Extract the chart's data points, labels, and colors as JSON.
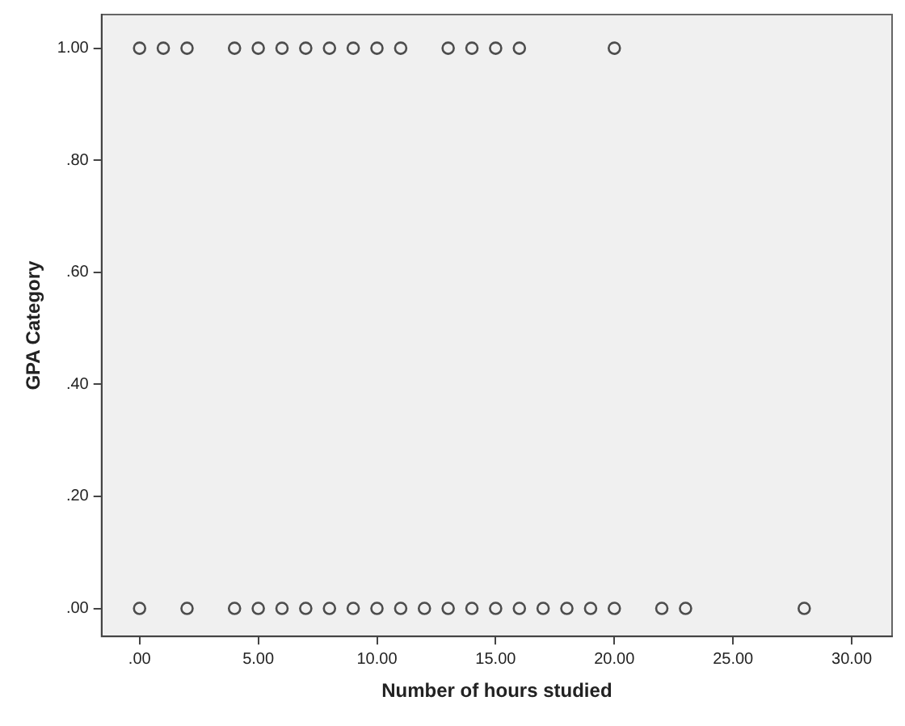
{
  "chart_data": {
    "type": "scatter",
    "xlabel": "Number of hours studied",
    "ylabel": "GPA Category",
    "series": [
      {
        "color": "#4d4d4d",
        "x": [
          0,
          1,
          2,
          4,
          5,
          6,
          7,
          8,
          9,
          10,
          11,
          13,
          14,
          15,
          16,
          20,
          0,
          2,
          4,
          5,
          6,
          7,
          8,
          9,
          10,
          11,
          12,
          13,
          14,
          15,
          16,
          17,
          18,
          19,
          20,
          22,
          23,
          28
        ],
        "values": [
          1,
          1,
          1,
          1,
          1,
          1,
          1,
          1,
          1,
          1,
          1,
          1,
          1,
          1,
          1,
          1,
          0,
          0,
          0,
          0,
          0,
          0,
          0,
          0,
          0,
          0,
          0,
          0,
          0,
          0,
          0,
          0,
          0,
          0,
          0,
          0,
          0,
          0
        ]
      }
    ],
    "xlim": [
      -1.6,
      31.7
    ],
    "ylim": [
      -0.05,
      1.06
    ],
    "xticks": [
      {
        "value": 0,
        "label": ".00"
      },
      {
        "value": 5,
        "label": "5.00"
      },
      {
        "value": 10,
        "label": "10.00"
      },
      {
        "value": 15,
        "label": "15.00"
      },
      {
        "value": 20,
        "label": "20.00"
      },
      {
        "value": 25,
        "label": "25.00"
      },
      {
        "value": 30,
        "label": "30.00"
      }
    ],
    "yticks": [
      {
        "value": 0,
        "label": ".00"
      },
      {
        "value": 0.2,
        "label": ".20"
      },
      {
        "value": 0.4,
        "label": ".40"
      },
      {
        "value": 0.6,
        "label": ".60"
      },
      {
        "value": 0.8,
        "label": ".80"
      },
      {
        "value": 1,
        "label": "1.00"
      }
    ],
    "grid": false,
    "legend": false,
    "marker": "circle"
  }
}
